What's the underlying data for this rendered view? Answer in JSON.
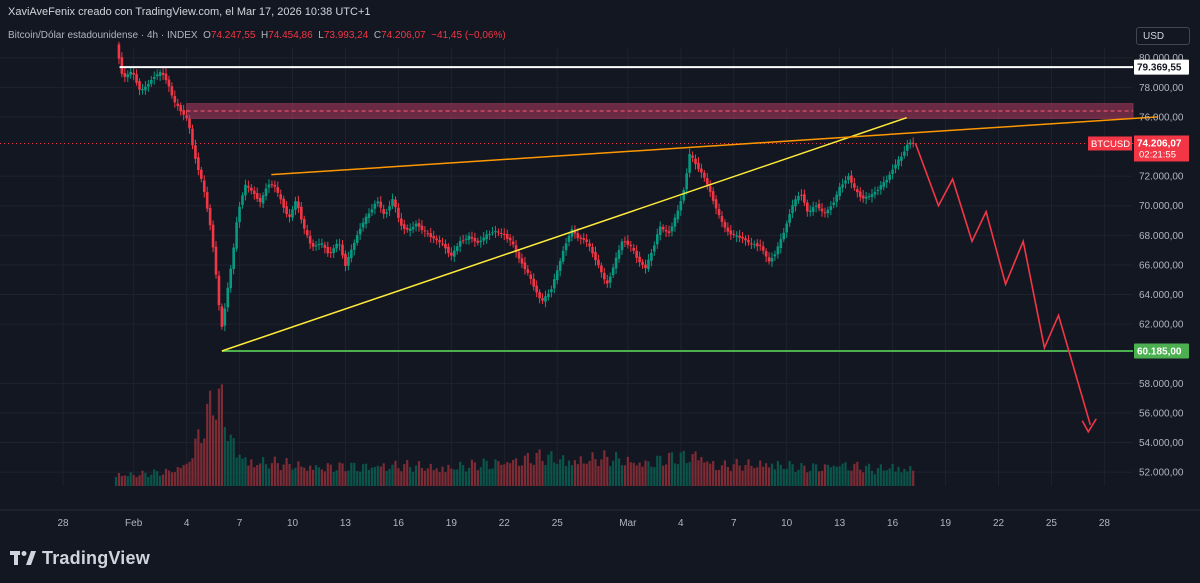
{
  "header": {
    "credit": "XaviAveFenix creado con TradingView.com, el Mar 17, 2026 10:38 UTC+1",
    "symbol": "Bitcoin/Dólar estadounidense · 4h · INDEX",
    "o_label": "O",
    "o_value": "74.247,55",
    "h_label": "H",
    "h_value": "74.454,86",
    "l_label": "L",
    "l_value": "73.993,24",
    "c_label": "C",
    "c_value": "74.206,07",
    "change": "−41,45 (−0,06%)"
  },
  "currency_button": "USD",
  "colors": {
    "background": "#131722",
    "up": "#089981",
    "down": "#f23645",
    "resistance_line": "#ffffff",
    "support_line": "#4caf50",
    "wedge_lower": "#ffeb3b",
    "wedge_upper": "#ff9800",
    "zone": "#b23a5f",
    "projection": "#f23645"
  },
  "chart_data": {
    "type": "candlestick",
    "title": "Bitcoin/Dólar estadounidense · 4h · INDEX",
    "ylim": [
      50800,
      81300
    ],
    "y_ticks": [
      52000,
      54000,
      56000,
      58000,
      62000,
      64000,
      66000,
      68000,
      70000,
      72000,
      76000,
      78000,
      80000
    ],
    "y_tick_labels": [
      "52.000,00",
      "54.000,00",
      "56.000,00",
      "58.000,00",
      "62.000,00",
      "64.000,00",
      "66.000,00",
      "68.000,00",
      "70.000,00",
      "72.000,00",
      "76.000,00",
      "78.000,00",
      "80.000,00"
    ],
    "x_ticks": [
      {
        "day": -3,
        "label": "28"
      },
      {
        "day": 1,
        "label": "Feb"
      },
      {
        "day": 4,
        "label": "4"
      },
      {
        "day": 7,
        "label": "7"
      },
      {
        "day": 10,
        "label": "10"
      },
      {
        "day": 13,
        "label": "13"
      },
      {
        "day": 16,
        "label": "16"
      },
      {
        "day": 19,
        "label": "19"
      },
      {
        "day": 22,
        "label": "22"
      },
      {
        "day": 25,
        "label": "25"
      },
      {
        "day": 29,
        "label": "Mar"
      },
      {
        "day": 32,
        "label": "4"
      },
      {
        "day": 35,
        "label": "7"
      },
      {
        "day": 38,
        "label": "10"
      },
      {
        "day": 41,
        "label": "13"
      },
      {
        "day": 44,
        "label": "16"
      },
      {
        "day": 47,
        "label": "19"
      },
      {
        "day": 50,
        "label": "22"
      },
      {
        "day": 53,
        "label": "25"
      },
      {
        "day": 56,
        "label": "28"
      }
    ],
    "price_path": [
      [
        0.0,
        80900
      ],
      [
        0.4,
        78600
      ],
      [
        0.9,
        79100
      ],
      [
        1.4,
        77700
      ],
      [
        1.8,
        78200
      ],
      [
        2.2,
        78800
      ],
      [
        2.6,
        79000
      ],
      [
        2.9,
        78400
      ],
      [
        3.3,
        77000
      ],
      [
        3.7,
        76400
      ],
      [
        4.1,
        75700
      ],
      [
        4.4,
        73600
      ],
      [
        4.9,
        71500
      ],
      [
        5.3,
        69000
      ],
      [
        5.6,
        66300
      ],
      [
        5.8,
        63500
      ],
      [
        6.0,
        61800
      ],
      [
        6.3,
        64200
      ],
      [
        6.6,
        66500
      ],
      [
        6.9,
        69500
      ],
      [
        7.3,
        71400
      ],
      [
        7.7,
        71000
      ],
      [
        8.2,
        70200
      ],
      [
        8.6,
        71500
      ],
      [
        9.0,
        71300
      ],
      [
        9.4,
        70200
      ],
      [
        9.8,
        69100
      ],
      [
        10.2,
        70400
      ],
      [
        10.7,
        68300
      ],
      [
        11.1,
        67200
      ],
      [
        11.6,
        67500
      ],
      [
        12.1,
        66700
      ],
      [
        12.6,
        67600
      ],
      [
        13.0,
        66000
      ],
      [
        13.5,
        67500
      ],
      [
        13.9,
        68700
      ],
      [
        14.4,
        69600
      ],
      [
        14.8,
        70400
      ],
      [
        15.2,
        69300
      ],
      [
        15.7,
        70500
      ],
      [
        16.1,
        68700
      ],
      [
        16.6,
        68300
      ],
      [
        17.0,
        68800
      ],
      [
        17.5,
        68200
      ],
      [
        18.0,
        67800
      ],
      [
        18.5,
        67400
      ],
      [
        19.0,
        66600
      ],
      [
        19.5,
        67600
      ],
      [
        20.0,
        67900
      ],
      [
        20.5,
        67500
      ],
      [
        21.0,
        68000
      ],
      [
        21.4,
        68300
      ],
      [
        21.9,
        68100
      ],
      [
        22.4,
        67600
      ],
      [
        22.8,
        66500
      ],
      [
        23.3,
        65500
      ],
      [
        23.7,
        64500
      ],
      [
        24.1,
        63500
      ],
      [
        24.6,
        64200
      ],
      [
        25.0,
        65600
      ],
      [
        25.4,
        67200
      ],
      [
        25.8,
        68400
      ],
      [
        26.2,
        67800
      ],
      [
        26.6,
        67700
      ],
      [
        27.0,
        66800
      ],
      [
        27.4,
        65800
      ],
      [
        27.8,
        64600
      ],
      [
        28.3,
        66300
      ],
      [
        28.7,
        67700
      ],
      [
        29.2,
        67200
      ],
      [
        29.6,
        66300
      ],
      [
        30.0,
        65800
      ],
      [
        30.4,
        67000
      ],
      [
        30.8,
        68600
      ],
      [
        31.3,
        68100
      ],
      [
        31.8,
        69500
      ],
      [
        32.2,
        71200
      ],
      [
        32.5,
        73500
      ],
      [
        32.9,
        72700
      ],
      [
        33.3,
        72000
      ],
      [
        33.8,
        70500
      ],
      [
        34.2,
        69200
      ],
      [
        34.6,
        68300
      ],
      [
        35.0,
        68000
      ],
      [
        35.5,
        67800
      ],
      [
        36.0,
        67400
      ],
      [
        36.5,
        67300
      ],
      [
        37.0,
        66200
      ],
      [
        37.4,
        66900
      ],
      [
        37.9,
        68400
      ],
      [
        38.3,
        70000
      ],
      [
        38.8,
        70900
      ],
      [
        39.2,
        69500
      ],
      [
        39.7,
        70100
      ],
      [
        40.1,
        69400
      ],
      [
        40.6,
        70100
      ],
      [
        41.0,
        71200
      ],
      [
        41.5,
        72000
      ],
      [
        41.9,
        71000
      ],
      [
        42.3,
        70500
      ],
      [
        42.8,
        70700
      ],
      [
        43.3,
        71300
      ],
      [
        43.7,
        71800
      ],
      [
        44.1,
        72700
      ],
      [
        44.5,
        73300
      ],
      [
        44.9,
        74300
      ],
      [
        45.3,
        74206
      ]
    ],
    "volume_path": [
      [
        0.0,
        1.0
      ],
      [
        1.0,
        0.9
      ],
      [
        2.0,
        1.0
      ],
      [
        3.0,
        1.2
      ],
      [
        4.0,
        1.8
      ],
      [
        5.0,
        5.0
      ],
      [
        5.6,
        7.0
      ],
      [
        6.0,
        6.5
      ],
      [
        6.6,
        3.4
      ],
      [
        7.5,
        2.0
      ],
      [
        9.0,
        1.8
      ],
      [
        11.0,
        1.6
      ],
      [
        13.0,
        1.5
      ],
      [
        15.0,
        1.7
      ],
      [
        18.0,
        1.5
      ],
      [
        20.0,
        1.6
      ],
      [
        22.0,
        2.0
      ],
      [
        24.0,
        2.3
      ],
      [
        26.0,
        2.1
      ],
      [
        28.0,
        2.2
      ],
      [
        30.0,
        1.9
      ],
      [
        32.0,
        2.3
      ],
      [
        33.0,
        2.6
      ],
      [
        34.0,
        1.6
      ],
      [
        36.0,
        1.7
      ],
      [
        37.0,
        1.9
      ],
      [
        39.0,
        1.4
      ],
      [
        41.0,
        1.8
      ],
      [
        43.0,
        1.3
      ],
      [
        44.0,
        1.6
      ],
      [
        45.3,
        1.3
      ]
    ],
    "volume_ylim": [
      0,
      7.2
    ],
    "annotations": {
      "resistance_line": {
        "price": 79369.55,
        "label": "79.369,55",
        "from_day": 0.2
      },
      "support_line": {
        "price": 60185.0,
        "label": "60.185,00",
        "from_day": 6.0
      },
      "current_price": {
        "label": "BTCUSD",
        "price": 74206.07,
        "value_label": "74.206,07",
        "countdown": "02:21:55"
      },
      "resistance_zone": {
        "from_price": 75900,
        "to_price": 76900,
        "dashed_price": 76400,
        "from_day": 4.0
      },
      "wedge_lower_line": {
        "from": [
          6.0,
          60185
        ],
        "to": [
          44.8,
          75950
        ]
      },
      "wedge_upper_line": {
        "from": [
          8.8,
          72100
        ],
        "to": [
          59.0,
          76000
        ]
      },
      "projection": [
        [
          45.3,
          74206
        ],
        [
          46.6,
          70000
        ],
        [
          47.4,
          71800
        ],
        [
          48.5,
          67600
        ],
        [
          49.3,
          69600
        ],
        [
          50.4,
          64700
        ],
        [
          51.4,
          67600
        ],
        [
          52.6,
          60400
        ],
        [
          53.4,
          62600
        ],
        [
          55.2,
          55200
        ]
      ]
    }
  },
  "footer": {
    "brand": "TradingView"
  }
}
